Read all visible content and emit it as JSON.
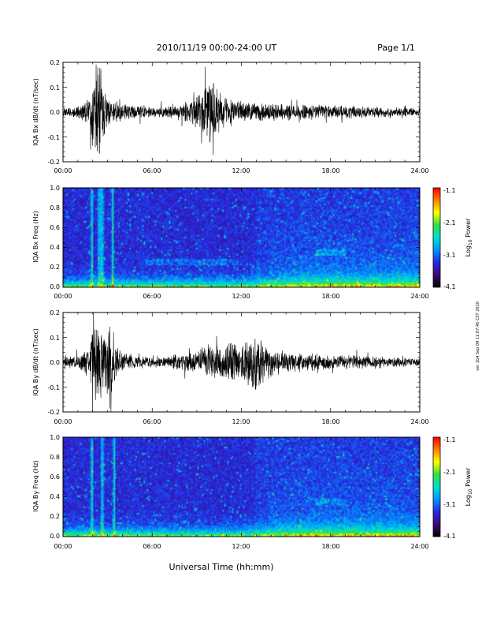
{
  "header": {
    "date_range": "2010/11/19  00:00-24:00 UT",
    "page": "Page 1/1"
  },
  "footer": {
    "xlabel": "Universal Time (hh:mm)"
  },
  "stamp": "ver 1b4 Sep 09 11:07:45 CST 2010",
  "colors": {
    "trace": "#000000",
    "colormap": [
      "#000000",
      "#3a0a78",
      "#2828e0",
      "#0096ff",
      "#00e0d0",
      "#30e040",
      "#ffff00",
      "#ff8000",
      "#ff0000"
    ]
  },
  "chart_data": [
    {
      "type": "line",
      "title": "",
      "xlabel": "",
      "ylabel": "IQA Bx dB/dt (nT/sec)",
      "xlim": [
        0,
        24
      ],
      "ylim": [
        -0.2,
        0.2
      ],
      "x_ticks": [
        "00:00",
        "06:00",
        "12:00",
        "18:00",
        "24:00"
      ],
      "y_ticks": [
        "-0.2",
        "-0.1",
        "0.0",
        "0.1",
        "0.2"
      ],
      "grid": false,
      "series": [
        {
          "x": [
            0,
            1,
            1.8,
            2.0,
            2.2,
            2.5,
            2.8,
            3.2,
            3.5,
            4,
            5,
            6,
            7,
            8,
            8.8,
            9.3,
            9.8,
            10.2,
            10.7,
            11.2,
            12,
            13,
            14,
            15,
            16,
            17,
            18,
            19,
            20,
            21,
            22,
            23,
            24
          ],
          "amp": [
            0.02,
            0.025,
            0.06,
            0.2,
            0.2,
            0.2,
            0.1,
            0.05,
            0.06,
            0.035,
            0.03,
            0.02,
            0.025,
            0.035,
            0.06,
            0.1,
            0.15,
            0.12,
            0.08,
            0.06,
            0.045,
            0.04,
            0.035,
            0.035,
            0.035,
            0.035,
            0.03,
            0.03,
            0.025,
            0.025,
            0.02,
            0.02,
            0.015
          ]
        }
      ]
    },
    {
      "type": "heatmap",
      "title": "",
      "xlabel": "",
      "ylabel": "IQA Bx Freq (Hz)",
      "xlim": [
        0,
        24
      ],
      "ylim": [
        0,
        1.0
      ],
      "x_ticks": [
        "00:00",
        "06:00",
        "12:00",
        "18:00",
        "24:00"
      ],
      "y_ticks": [
        "0.0",
        "0.2",
        "0.4",
        "0.6",
        "0.8",
        "1.0"
      ],
      "colorbar": {
        "label": "Log10 Power",
        "label_main": "Log",
        "label_sub": "10",
        "label_rest": " Power",
        "range": [
          -4.1,
          -1.1
        ],
        "ticks": [
          "-1.1",
          "-2.1",
          "-3.1",
          "-4.1"
        ]
      },
      "features": [
        {
          "kind": "vertical_bursts",
          "x": [
            1.9,
            2.4,
            2.6,
            3.3
          ]
        },
        {
          "kind": "band",
          "x_range": [
            5.5,
            11.8
          ],
          "f": 0.25
        },
        {
          "kind": "band",
          "x_range": [
            17,
            19
          ],
          "f": 0.35
        }
      ]
    },
    {
      "type": "line",
      "title": "",
      "xlabel": "",
      "ylabel": "IQA By dB/dt (nT/sec)",
      "xlim": [
        0,
        24
      ],
      "ylim": [
        -0.2,
        0.2
      ],
      "x_ticks": [
        "00:00",
        "06:00",
        "12:00",
        "18:00",
        "24:00"
      ],
      "y_ticks": [
        "-0.2",
        "-0.1",
        "0.0",
        "0.1",
        "0.2"
      ],
      "grid": false,
      "series": [
        {
          "x": [
            0,
            1,
            1.8,
            2.0,
            2.2,
            2.5,
            2.8,
            3.2,
            3.5,
            4,
            5,
            6,
            7,
            8,
            9,
            9.5,
            10,
            10.5,
            11,
            11.5,
            12,
            12.5,
            13,
            13.5,
            14,
            15,
            16,
            17,
            18,
            19,
            20,
            21,
            22,
            23,
            24
          ],
          "amp": [
            0.02,
            0.03,
            0.07,
            0.2,
            0.2,
            0.2,
            0.1,
            0.2,
            0.08,
            0.04,
            0.03,
            0.02,
            0.025,
            0.04,
            0.05,
            0.07,
            0.08,
            0.07,
            0.08,
            0.1,
            0.09,
            0.11,
            0.13,
            0.1,
            0.06,
            0.045,
            0.04,
            0.035,
            0.035,
            0.03,
            0.03,
            0.025,
            0.02,
            0.02,
            0.015
          ]
        }
      ]
    },
    {
      "type": "heatmap",
      "title": "",
      "xlabel": "",
      "ylabel": "IQA By Freq (Hz)",
      "xlim": [
        0,
        24
      ],
      "ylim": [
        0,
        1.0
      ],
      "x_ticks": [
        "00:00",
        "06:00",
        "12:00",
        "18:00",
        "24:00"
      ],
      "y_ticks": [
        "0.0",
        "0.2",
        "0.4",
        "0.6",
        "0.8",
        "1.0"
      ],
      "colorbar": {
        "label": "Log10 Power",
        "label_main": "Log",
        "label_sub": "10",
        "label_rest": " Power",
        "range": [
          -4.1,
          -1.1
        ],
        "ticks": [
          "-1.1",
          "-2.1",
          "-3.1",
          "-4.1"
        ]
      },
      "features": [
        {
          "kind": "vertical_bursts",
          "x": [
            1.9,
            2.6,
            3.4
          ]
        },
        {
          "kind": "band",
          "x_range": [
            17,
            19
          ],
          "f": 0.35
        }
      ]
    }
  ]
}
